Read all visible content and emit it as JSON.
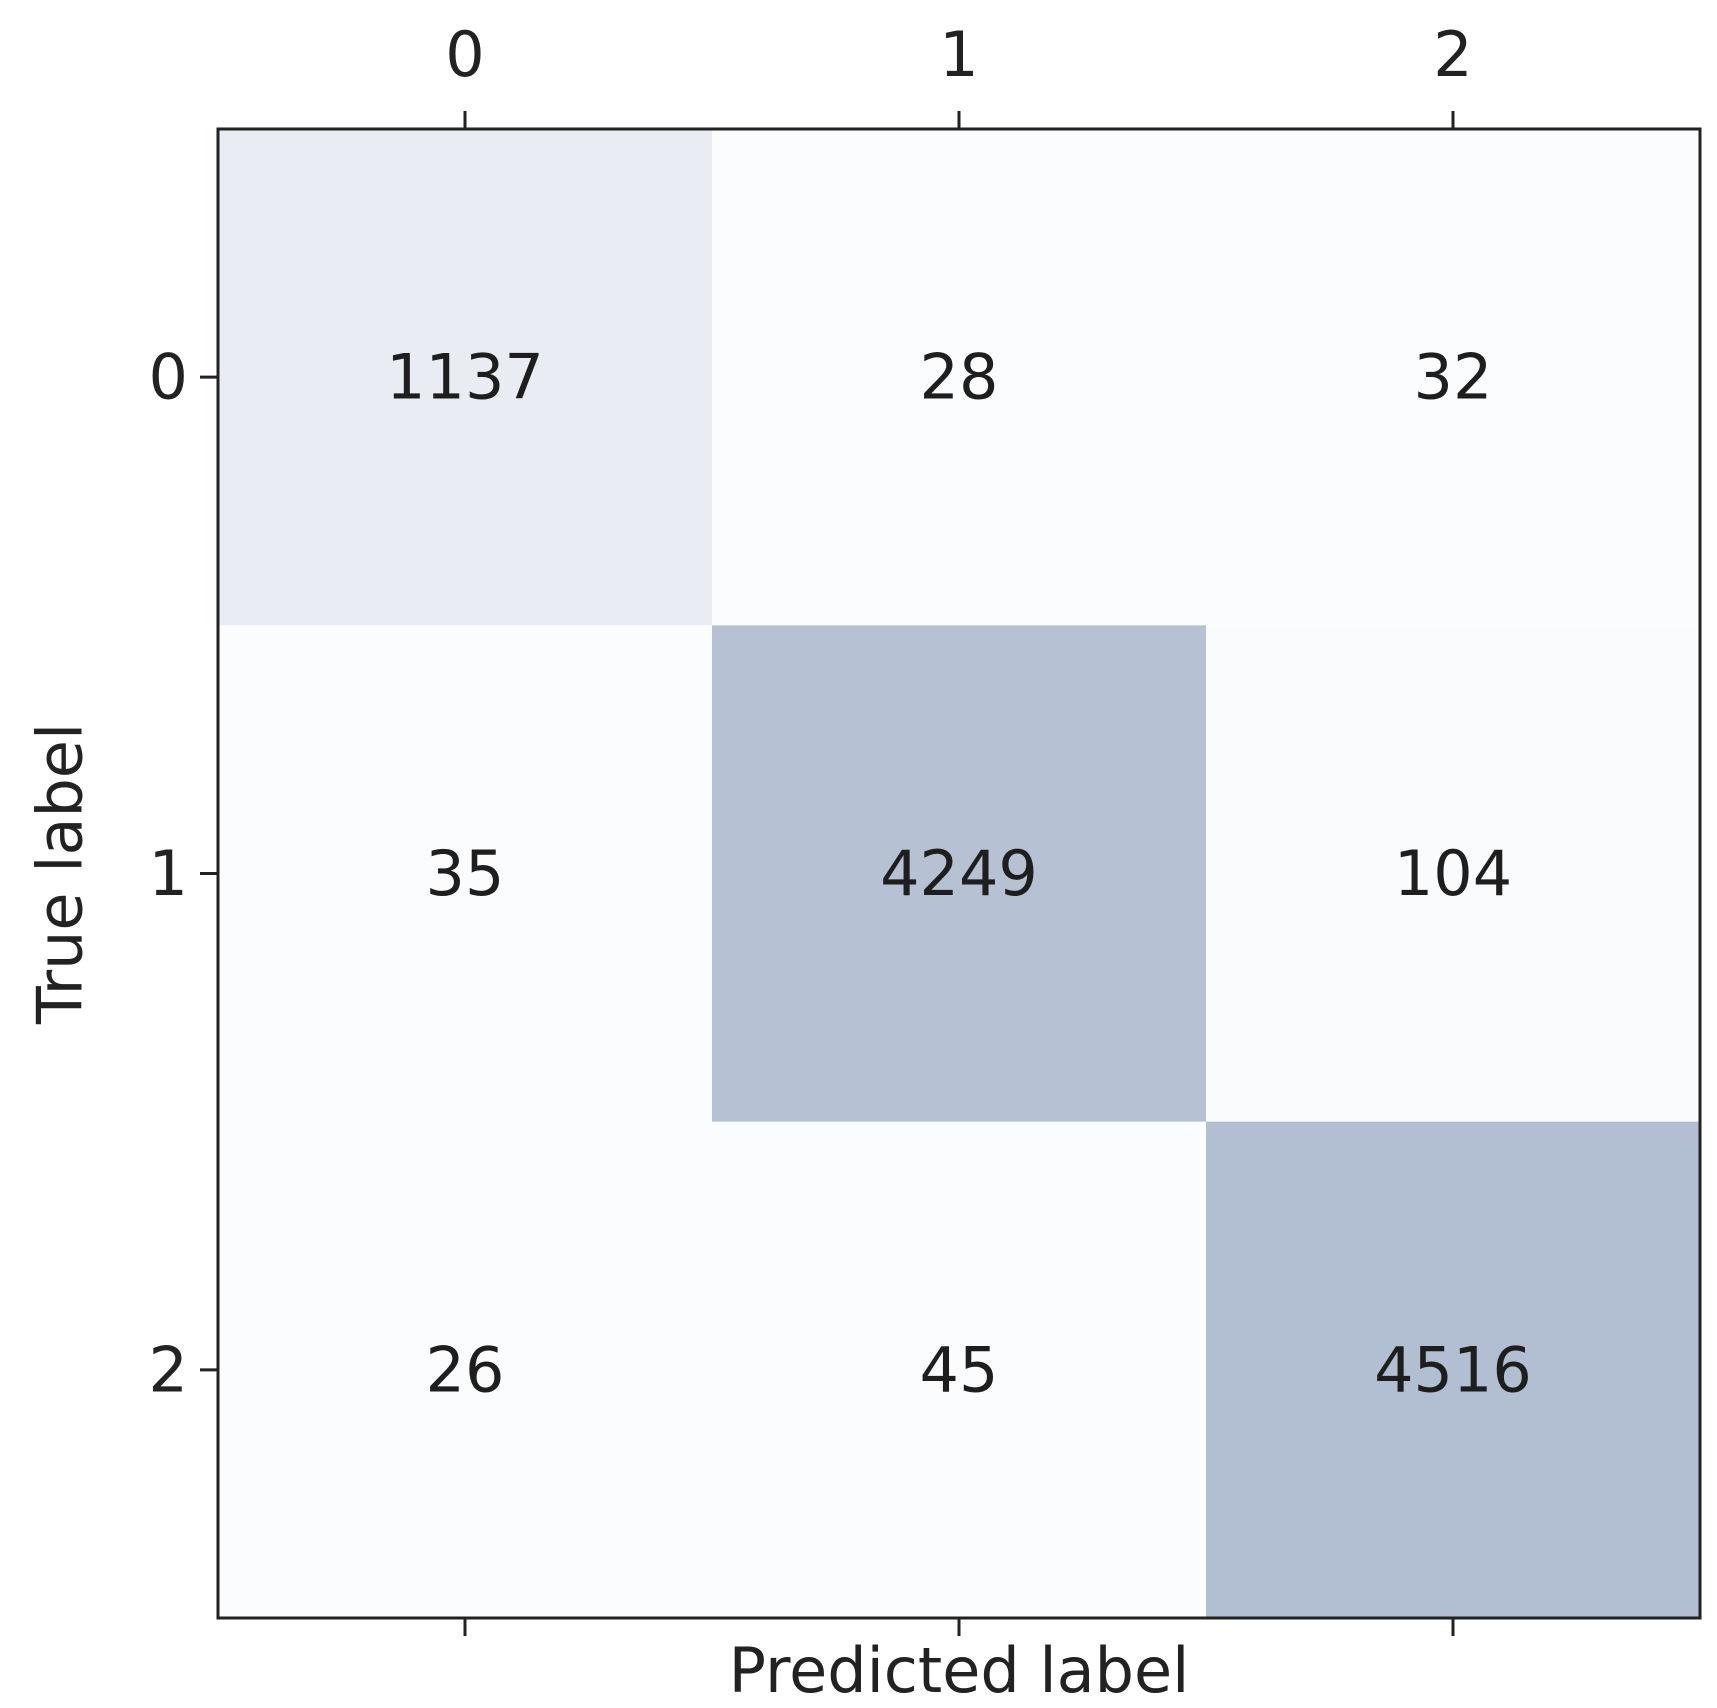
{
  "chart_data": {
    "type": "heatmap",
    "x_categories": [
      "0",
      "1",
      "2"
    ],
    "y_categories": [
      "0",
      "1",
      "2"
    ],
    "values": [
      [
        1137,
        28,
        32
      ],
      [
        35,
        4249,
        104
      ],
      [
        26,
        45,
        4516
      ]
    ],
    "xlabel": "Predicted label",
    "ylabel": "True label",
    "x_ticks_position": "top",
    "grid": false,
    "colormap": "blues",
    "color_low": "#fbfcfe",
    "color_high": "#b2bed1",
    "text_color": "#1e1e1e",
    "frame_color": "#222222"
  }
}
